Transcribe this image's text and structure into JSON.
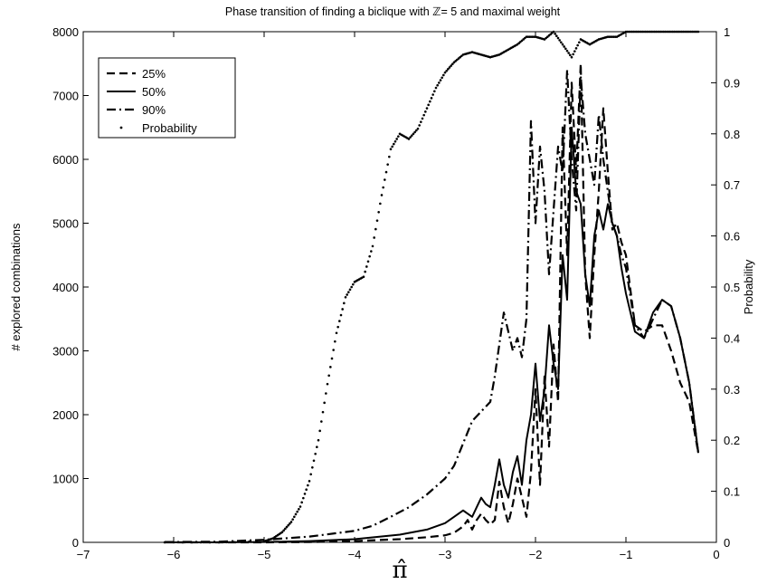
{
  "chart_data": {
    "type": "line",
    "title": "Phase transition of finding a biclique with ℤ= 5 and maximal weight",
    "xlabel": "π̂",
    "ylabel": "# explored combinations",
    "ylabel_right": "Probability",
    "xlim": [
      -7,
      0
    ],
    "ylim": [
      0,
      8000
    ],
    "ylim_right": [
      0,
      1
    ],
    "x_ticks": [
      "−7",
      "−6",
      "−5",
      "−4",
      "−3",
      "−2",
      "−1",
      "0"
    ],
    "y_ticks": [
      "0",
      "1000",
      "2000",
      "3000",
      "4000",
      "5000",
      "6000",
      "7000",
      "8000"
    ],
    "y_ticks_right": [
      "0",
      "0.1",
      "0.2",
      "0.3",
      "0.4",
      "0.5",
      "0.6",
      "0.7",
      "0.8",
      "0.9",
      "1"
    ],
    "grid": false,
    "legend_position": "top-left",
    "series": [
      {
        "name": "25%",
        "style": "dashed",
        "axis": "left",
        "x": [
          -6.1,
          -5.5,
          -5.0,
          -4.5,
          -4.0,
          -3.5,
          -3.2,
          -3.0,
          -2.9,
          -2.8,
          -2.75,
          -2.7,
          -2.65,
          -2.6,
          -2.55,
          -2.5,
          -2.45,
          -2.4,
          -2.35,
          -2.3,
          -2.25,
          -2.2,
          -2.15,
          -2.1,
          -2.05,
          -2.0,
          -1.95,
          -1.9,
          -1.85,
          -1.8,
          -1.75,
          -1.7,
          -1.65,
          -1.6,
          -1.55,
          -1.5,
          -1.45,
          -1.4,
          -1.35,
          -1.3,
          -1.25,
          -1.2,
          -1.15,
          -1.1,
          -1.05,
          -1.0,
          -0.9,
          -0.8,
          -0.7,
          -0.6,
          -0.5,
          -0.4,
          -0.3,
          -0.2
        ],
        "values": [
          0,
          0,
          0,
          5,
          20,
          50,
          80,
          110,
          150,
          250,
          350,
          200,
          350,
          450,
          350,
          280,
          350,
          950,
          550,
          300,
          600,
          1000,
          700,
          400,
          1100,
          2400,
          900,
          2600,
          1500,
          3100,
          2200,
          6500,
          4500,
          7200,
          5800,
          7500,
          4200,
          3200,
          4500,
          5500,
          6800,
          5800,
          4900,
          5000,
          4700,
          4500,
          3400,
          3300,
          3400,
          3400,
          3000,
          2500,
          2200,
          1400
        ]
      },
      {
        "name": "50%",
        "style": "solid",
        "axis": "left",
        "x": [
          -6.1,
          -5.5,
          -5.0,
          -4.5,
          -4.0,
          -3.5,
          -3.2,
          -3.0,
          -2.9,
          -2.8,
          -2.75,
          -2.7,
          -2.65,
          -2.6,
          -2.55,
          -2.5,
          -2.45,
          -2.4,
          -2.35,
          -2.3,
          -2.25,
          -2.2,
          -2.15,
          -2.1,
          -2.05,
          -2.0,
          -1.95,
          -1.9,
          -1.85,
          -1.8,
          -1.75,
          -1.7,
          -1.65,
          -1.6,
          -1.55,
          -1.5,
          -1.45,
          -1.4,
          -1.35,
          -1.3,
          -1.25,
          -1.2,
          -1.15,
          -1.1,
          -1.05,
          -1.0,
          -0.9,
          -0.8,
          -0.7,
          -0.6,
          -0.5,
          -0.4,
          -0.3,
          -0.2
        ],
        "values": [
          0,
          0,
          5,
          20,
          50,
          120,
          200,
          300,
          400,
          500,
          450,
          400,
          550,
          700,
          600,
          550,
          900,
          1300,
          900,
          700,
          1100,
          1350,
          900,
          1600,
          2000,
          2800,
          1900,
          2400,
          3400,
          2800,
          2400,
          4500,
          3800,
          6500,
          5500,
          5300,
          4200,
          3700,
          4800,
          5200,
          4900,
          5300,
          5000,
          4800,
          4300,
          3900,
          3300,
          3200,
          3600,
          3800,
          3700,
          3200,
          2500,
          1400
        ]
      },
      {
        "name": "90%",
        "style": "dashdot",
        "axis": "left",
        "x": [
          -6.1,
          -5.5,
          -5.0,
          -4.5,
          -4.0,
          -3.8,
          -3.6,
          -3.4,
          -3.2,
          -3.0,
          -2.9,
          -2.8,
          -2.7,
          -2.6,
          -2.5,
          -2.45,
          -2.4,
          -2.35,
          -2.3,
          -2.25,
          -2.2,
          -2.15,
          -2.1,
          -2.05,
          -2.0,
          -1.95,
          -1.9,
          -1.85,
          -1.8,
          -1.75,
          -1.7,
          -1.65,
          -1.6,
          -1.55,
          -1.5,
          -1.45,
          -1.4,
          -1.35,
          -1.3,
          -1.25,
          -1.2,
          -1.15,
          -1.1,
          -1.05,
          -1.0,
          -0.9,
          -0.8,
          -0.7,
          -0.6,
          -0.5,
          -0.4,
          -0.3,
          -0.2
        ],
        "values": [
          5,
          10,
          40,
          90,
          180,
          260,
          400,
          550,
          750,
          1000,
          1200,
          1550,
          1900,
          2050,
          2200,
          2600,
          3100,
          3600,
          3300,
          3000,
          3200,
          2900,
          3500,
          6600,
          5000,
          6200,
          5500,
          4200,
          5200,
          6200,
          5800,
          7400,
          6000,
          5200,
          7300,
          6400,
          6000,
          5600,
          6700,
          6000,
          5500,
          5000,
          4800,
          4500,
          4300,
          3400,
          3200,
          3500,
          3800,
          3700,
          3200,
          2500,
          1400
        ]
      },
      {
        "name": "Probability",
        "style": "dotted",
        "axis": "right",
        "x": [
          -6.1,
          -5.5,
          -5.0,
          -4.9,
          -4.8,
          -4.7,
          -4.6,
          -4.5,
          -4.4,
          -4.3,
          -4.2,
          -4.1,
          -4.0,
          -3.9,
          -3.8,
          -3.7,
          -3.6,
          -3.5,
          -3.4,
          -3.3,
          -3.2,
          -3.1,
          -3.0,
          -2.9,
          -2.8,
          -2.7,
          -2.6,
          -2.5,
          -2.4,
          -2.3,
          -2.2,
          -2.1,
          -2.0,
          -1.9,
          -1.8,
          -1.7,
          -1.6,
          -1.5,
          -1.4,
          -1.3,
          -1.2,
          -1.1,
          -1.0,
          -0.9,
          -0.8,
          -0.7,
          -0.6,
          -0.5,
          -0.4,
          -0.3,
          -0.2
        ],
        "values": [
          0.0,
          0.0,
          0.002,
          0.008,
          0.02,
          0.04,
          0.07,
          0.12,
          0.2,
          0.31,
          0.41,
          0.48,
          0.51,
          0.52,
          0.58,
          0.68,
          0.77,
          0.8,
          0.79,
          0.81,
          0.85,
          0.89,
          0.92,
          0.94,
          0.955,
          0.96,
          0.955,
          0.95,
          0.955,
          0.965,
          0.975,
          0.99,
          0.99,
          0.985,
          1.0,
          0.975,
          0.95,
          0.985,
          0.975,
          0.985,
          0.99,
          0.99,
          1.0,
          1.0,
          1.0,
          1.0,
          1.0,
          1.0,
          1.0,
          1.0,
          1.0
        ]
      }
    ]
  }
}
